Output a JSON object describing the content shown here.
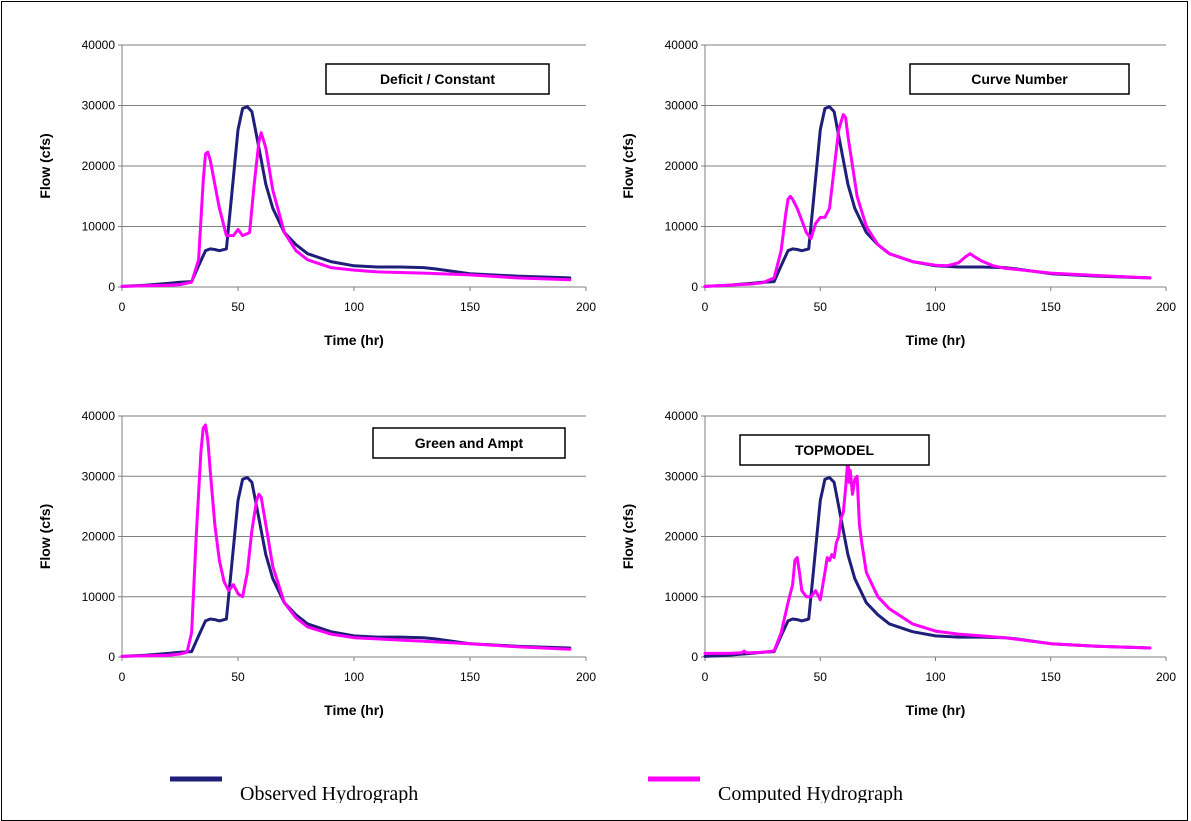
{
  "colors": {
    "observed": "#1f1f7a",
    "computed": "#ff00ff",
    "grid": "#7f7f7f"
  },
  "legend": {
    "observed_label": "Observed Hydrograph",
    "computed_label": "Computed Hydrograph"
  },
  "chart_data": [
    {
      "type": "line",
      "title": "Deficit / Constant",
      "xlabel": "Time  (hr)",
      "ylabel": "Flow  (cfs)",
      "xlim": [
        0,
        200
      ],
      "ylim": [
        0,
        40000
      ],
      "xticks": [
        0,
        50,
        100,
        150,
        200
      ],
      "yticks": [
        0,
        10000,
        20000,
        30000,
        40000
      ],
      "grid": "horizontal",
      "series": [
        {
          "name": "Observed Hydrograph",
          "x": [
            0,
            10,
            20,
            25,
            30,
            33,
            36,
            38,
            40,
            42,
            45,
            47,
            50,
            52,
            54,
            56,
            58,
            60,
            62,
            65,
            70,
            75,
            80,
            90,
            100,
            110,
            120,
            130,
            135,
            150,
            170,
            193
          ],
          "y": [
            100,
            300,
            600,
            800,
            900,
            3500,
            6000,
            6300,
            6200,
            6000,
            6300,
            14000,
            26000,
            29500,
            29800,
            29000,
            25000,
            21000,
            17000,
            13000,
            9000,
            7000,
            5500,
            4200,
            3500,
            3300,
            3300,
            3200,
            3000,
            2200,
            1800,
            1500
          ]
        },
        {
          "name": "Computed Hydrograph",
          "x": [
            0,
            10,
            20,
            25,
            30,
            33,
            35,
            36,
            37,
            38,
            40,
            42,
            45,
            48,
            50,
            52,
            55,
            57,
            59,
            60,
            62,
            65,
            70,
            75,
            80,
            90,
            100,
            110,
            120,
            130,
            150,
            170,
            193
          ],
          "y": [
            100,
            200,
            300,
            400,
            800,
            4500,
            17500,
            22000,
            22300,
            21000,
            17000,
            13000,
            8500,
            8500,
            9500,
            8500,
            9000,
            17000,
            24000,
            25500,
            23000,
            16000,
            9000,
            6000,
            4500,
            3200,
            2800,
            2500,
            2400,
            2300,
            2000,
            1500,
            1200
          ]
        }
      ]
    },
    {
      "type": "line",
      "title": "Curve Number",
      "xlabel": "Time  (hr)",
      "ylabel": "Flow  (cfs)",
      "xlim": [
        0,
        200
      ],
      "ylim": [
        0,
        40000
      ],
      "xticks": [
        0,
        50,
        100,
        150,
        200
      ],
      "yticks": [
        0,
        10000,
        20000,
        30000,
        40000
      ],
      "grid": "horizontal",
      "series": [
        {
          "name": "Observed Hydrograph",
          "x": [
            0,
            10,
            20,
            25,
            30,
            33,
            36,
            38,
            40,
            42,
            45,
            47,
            50,
            52,
            54,
            56,
            58,
            60,
            62,
            65,
            70,
            75,
            80,
            90,
            100,
            110,
            120,
            130,
            135,
            150,
            170,
            193
          ],
          "y": [
            100,
            300,
            600,
            800,
            900,
            3500,
            6000,
            6300,
            6200,
            6000,
            6300,
            14000,
            26000,
            29500,
            29800,
            29000,
            25000,
            21000,
            17000,
            13000,
            9000,
            7000,
            5500,
            4200,
            3500,
            3300,
            3300,
            3200,
            3000,
            2200,
            1800,
            1500
          ]
        },
        {
          "name": "Computed Hydrograph",
          "x": [
            0,
            10,
            20,
            25,
            30,
            33,
            35,
            36,
            37,
            38,
            40,
            42,
            44,
            46,
            48,
            50,
            52,
            54,
            56,
            58,
            60,
            61,
            62,
            64,
            66,
            70,
            75,
            80,
            90,
            100,
            105,
            110,
            113,
            115,
            117,
            120,
            125,
            130,
            150,
            170,
            193
          ],
          "y": [
            100,
            300,
            500,
            700,
            1500,
            6000,
            12000,
            14500,
            15000,
            14500,
            13000,
            11000,
            9000,
            8000,
            10500,
            11500,
            11500,
            13000,
            19500,
            26000,
            28500,
            28000,
            25000,
            20000,
            15000,
            10000,
            7000,
            5500,
            4200,
            3600,
            3500,
            4000,
            5000,
            5500,
            5000,
            4300,
            3500,
            3100,
            2300,
            1900,
            1500
          ]
        }
      ]
    },
    {
      "type": "line",
      "title": "Green and Ampt",
      "xlabel": "Time  (hr)",
      "ylabel": "Flow  (cfs)",
      "xlim": [
        0,
        200
      ],
      "ylim": [
        0,
        40000
      ],
      "xticks": [
        0,
        50,
        100,
        150,
        200
      ],
      "yticks": [
        0,
        10000,
        20000,
        30000,
        40000
      ],
      "grid": "horizontal",
      "series": [
        {
          "name": "Observed Hydrograph",
          "x": [
            0,
            10,
            20,
            25,
            30,
            33,
            36,
            38,
            40,
            42,
            45,
            47,
            50,
            52,
            54,
            56,
            58,
            60,
            62,
            65,
            70,
            75,
            80,
            90,
            100,
            110,
            120,
            130,
            135,
            150,
            170,
            193
          ],
          "y": [
            100,
            300,
            600,
            800,
            900,
            3500,
            6000,
            6300,
            6200,
            6000,
            6300,
            14000,
            26000,
            29500,
            29800,
            29000,
            25000,
            21000,
            17000,
            13000,
            9000,
            7000,
            5500,
            4200,
            3500,
            3300,
            3300,
            3200,
            3000,
            2200,
            1800,
            1500
          ]
        },
        {
          "name": "Computed Hydrograph",
          "x": [
            0,
            10,
            20,
            25,
            28,
            30,
            32,
            34,
            35,
            36,
            37,
            38,
            40,
            42,
            44,
            46,
            48,
            50,
            52,
            54,
            56,
            58,
            59,
            60,
            62,
            65,
            70,
            75,
            80,
            90,
            100,
            110,
            120,
            130,
            150,
            170,
            193
          ],
          "y": [
            100,
            200,
            300,
            500,
            800,
            4000,
            20000,
            34000,
            38000,
            38500,
            36000,
            31000,
            22000,
            16000,
            12500,
            11000,
            12000,
            10500,
            10000,
            14000,
            21000,
            26000,
            27000,
            26500,
            22000,
            15000,
            9000,
            6500,
            5000,
            3800,
            3200,
            3000,
            2800,
            2600,
            2200,
            1700,
            1300
          ]
        }
      ]
    },
    {
      "type": "line",
      "title": "TOPMODEL",
      "xlabel": "Time  (hr)",
      "ylabel": "Flow  (cfs)",
      "xlim": [
        0,
        200
      ],
      "ylim": [
        0,
        40000
      ],
      "xticks": [
        0,
        50,
        100,
        150,
        200
      ],
      "yticks": [
        0,
        10000,
        20000,
        30000,
        40000
      ],
      "grid": "horizontal",
      "series": [
        {
          "name": "Observed Hydrograph",
          "x": [
            0,
            10,
            20,
            25,
            30,
            33,
            36,
            38,
            40,
            42,
            45,
            47,
            50,
            52,
            54,
            56,
            58,
            60,
            62,
            65,
            70,
            75,
            80,
            90,
            100,
            110,
            120,
            130,
            135,
            150,
            170,
            193
          ],
          "y": [
            100,
            300,
            600,
            800,
            900,
            3500,
            6000,
            6300,
            6200,
            6000,
            6300,
            14000,
            26000,
            29500,
            29800,
            29000,
            25000,
            21000,
            17000,
            13000,
            9000,
            7000,
            5500,
            4200,
            3500,
            3300,
            3300,
            3200,
            3000,
            2200,
            1800,
            1500
          ]
        },
        {
          "name": "Computed Hydrograph",
          "x": [
            0,
            10,
            16,
            17,
            18,
            20,
            25,
            30,
            33,
            36,
            38,
            39,
            40,
            41,
            42,
            44,
            46,
            48,
            50,
            52,
            53,
            54,
            55,
            56,
            57,
            58,
            59,
            60,
            61,
            62,
            62.5,
            63,
            64,
            65,
            66,
            67,
            68,
            70,
            75,
            80,
            90,
            100,
            110,
            120,
            130,
            150,
            170,
            193
          ],
          "y": [
            600,
            600,
            700,
            1000,
            700,
            700,
            800,
            1000,
            4000,
            9000,
            12000,
            16000,
            16500,
            14000,
            11000,
            10000,
            10000,
            11000,
            9500,
            14000,
            16500,
            16000,
            17000,
            16500,
            19000,
            20000,
            23000,
            24000,
            28000,
            33000,
            29000,
            31000,
            27000,
            29500,
            30000,
            22000,
            19000,
            14000,
            10000,
            8000,
            5500,
            4300,
            3800,
            3500,
            3200,
            2200,
            1800,
            1500
          ]
        }
      ]
    }
  ]
}
